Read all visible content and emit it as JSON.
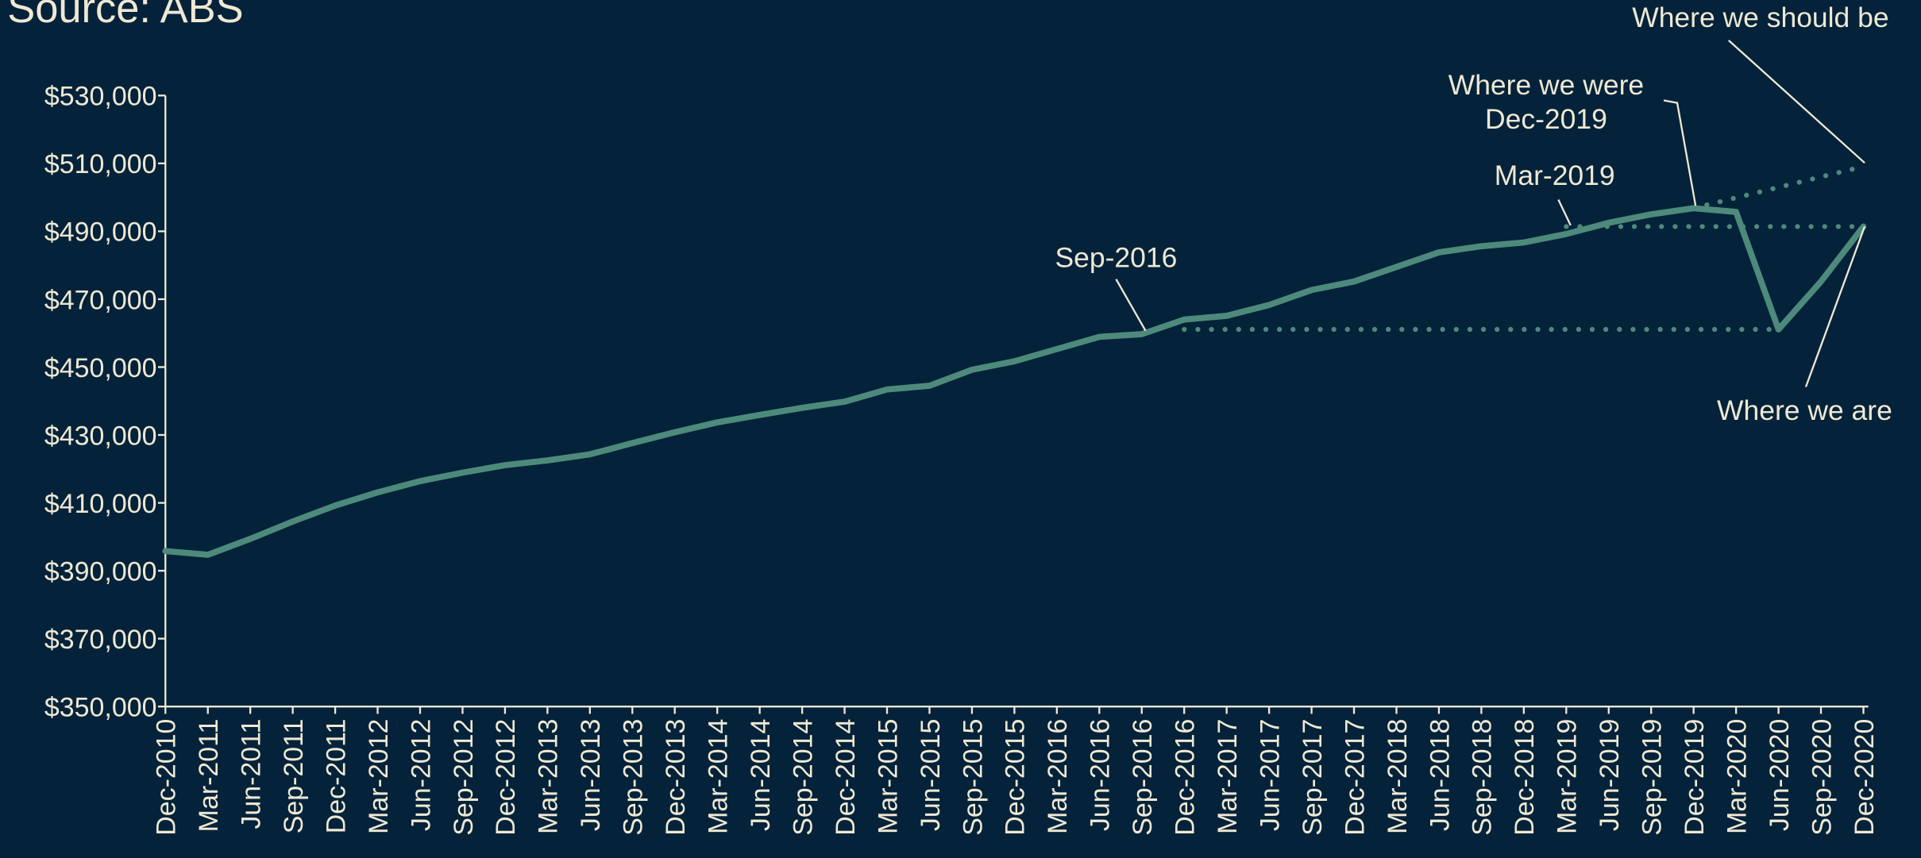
{
  "chart_data": {
    "type": "line",
    "title": "Source: ABS",
    "categories": [
      "Dec-2010",
      "Mar-2011",
      "Jun-2011",
      "Sep-2011",
      "Dec-2011",
      "Mar-2012",
      "Jun-2012",
      "Sep-2012",
      "Dec-2012",
      "Mar-2013",
      "Jun-2013",
      "Sep-2013",
      "Dec-2013",
      "Mar-2014",
      "Jun-2014",
      "Sep-2014",
      "Dec-2014",
      "Mar-2015",
      "Jun-2015",
      "Sep-2015",
      "Dec-2015",
      "Mar-2016",
      "Jun-2016",
      "Sep-2016",
      "Dec-2016",
      "Mar-2017",
      "Jun-2017",
      "Sep-2017",
      "Dec-2017",
      "Mar-2018",
      "Jun-2018",
      "Sep-2018",
      "Dec-2018",
      "Mar-2019",
      "Jun-2019",
      "Sep-2019",
      "Dec-2019",
      "Mar-2020",
      "Jun-2020",
      "Sep-2020",
      "Dec-2020"
    ],
    "series": [
      {
        "color": "#4e8a7c",
        "style": "solid",
        "values": [
          395800,
          394700,
          399400,
          404500,
          409200,
          413100,
          416400,
          418900,
          421100,
          422500,
          424300,
          427600,
          430800,
          433700,
          435900,
          438000,
          439800,
          443400,
          444500,
          449200,
          451700,
          455300,
          458900,
          459700,
          464000,
          465100,
          468300,
          472700,
          475200,
          479500,
          483800,
          485600,
          486700,
          489200,
          492500,
          495000,
          496800,
          495700,
          461100,
          475200,
          491400
        ]
      },
      {
        "color": "#4e8a7c",
        "style": "dotted",
        "values": [
          null,
          null,
          null,
          null,
          null,
          null,
          null,
          null,
          null,
          null,
          null,
          null,
          null,
          null,
          null,
          null,
          null,
          null,
          null,
          null,
          null,
          null,
          null,
          null,
          461100,
          461100,
          461100,
          461100,
          461100,
          461100,
          461100,
          461100,
          461100,
          461100,
          461100,
          461100,
          461100,
          461100,
          461100,
          null,
          null
        ]
      },
      {
        "color": "#4e8a7c",
        "style": "dotted",
        "values": [
          null,
          null,
          null,
          null,
          null,
          null,
          null,
          null,
          null,
          null,
          null,
          null,
          null,
          null,
          null,
          null,
          null,
          null,
          null,
          null,
          null,
          null,
          null,
          null,
          null,
          null,
          null,
          null,
          null,
          null,
          null,
          null,
          null,
          491400,
          491400,
          491400,
          491400,
          491400,
          491400,
          491400,
          491400
        ]
      },
      {
        "color": "#4e8a7c",
        "style": "dotted",
        "values": [
          null,
          null,
          null,
          null,
          null,
          null,
          null,
          null,
          null,
          null,
          null,
          null,
          null,
          null,
          null,
          null,
          null,
          null,
          null,
          null,
          null,
          null,
          null,
          null,
          null,
          null,
          null,
          null,
          null,
          null,
          null,
          null,
          null,
          null,
          null,
          null,
          496800,
          499875,
          502950,
          506025,
          509100
        ]
      }
    ],
    "ylim": [
      350000,
      530000
    ],
    "yticks": [
      {
        "value": 350000,
        "label": "$350,000"
      },
      {
        "value": 370000,
        "label": "$370,000"
      },
      {
        "value": 390000,
        "label": "$390,000"
      },
      {
        "value": 410000,
        "label": "$410,000"
      },
      {
        "value": 430000,
        "label": "$430,000"
      },
      {
        "value": 450000,
        "label": "$450,000"
      },
      {
        "value": 470000,
        "label": "$470,000"
      },
      {
        "value": 490000,
        "label": "$490,000"
      },
      {
        "value": 510000,
        "label": "$510,000"
      },
      {
        "value": 530000,
        "label": "$530,000"
      }
    ],
    "annotations": [
      {
        "lines": [
          "Where we should be"
        ]
      },
      {
        "lines": [
          "Where we were",
          "Dec-2019"
        ]
      },
      {
        "lines": [
          "Mar-2019"
        ]
      },
      {
        "lines": [
          "Sep-2016"
        ]
      },
      {
        "lines": [
          "Where we are"
        ]
      }
    ]
  }
}
